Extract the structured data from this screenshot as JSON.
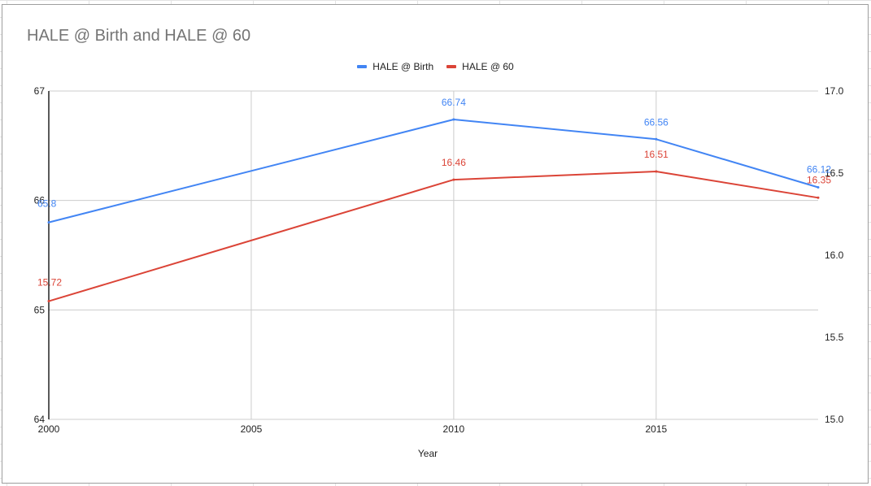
{
  "chart_data": {
    "type": "line",
    "title": "HALE @ Birth and HALE @ 60",
    "xlabel": "Year",
    "ylabel": "",
    "ylabel_right": "",
    "x_range": [
      2000,
      2019
    ],
    "x_ticks": [
      "2000",
      "2005",
      "2010",
      "2015"
    ],
    "y_left": {
      "range": [
        64,
        67
      ],
      "ticks": [
        "64",
        "65",
        "66",
        "67"
      ]
    },
    "y_right": {
      "range": [
        15.0,
        17.0
      ],
      "ticks": [
        "15.0",
        "15.5",
        "16.0",
        "16.5",
        "17.0"
      ]
    },
    "grid": true,
    "legend_position": "top",
    "series": [
      {
        "name": "HALE @ Birth",
        "axis": "left",
        "color": "#4285f4",
        "x": [
          2000,
          2010,
          2015,
          2019
        ],
        "y": [
          65.8,
          66.74,
          66.56,
          66.12
        ],
        "labels": [
          "65.8",
          "66.74",
          "66.56",
          "66.12"
        ]
      },
      {
        "name": "HALE @ 60",
        "axis": "right",
        "color": "#db4437",
        "x": [
          2000,
          2010,
          2015,
          2019
        ],
        "y": [
          15.72,
          16.46,
          16.51,
          16.35
        ],
        "labels": [
          "15.72",
          "16.46",
          "16.51",
          "16.35"
        ]
      }
    ]
  }
}
